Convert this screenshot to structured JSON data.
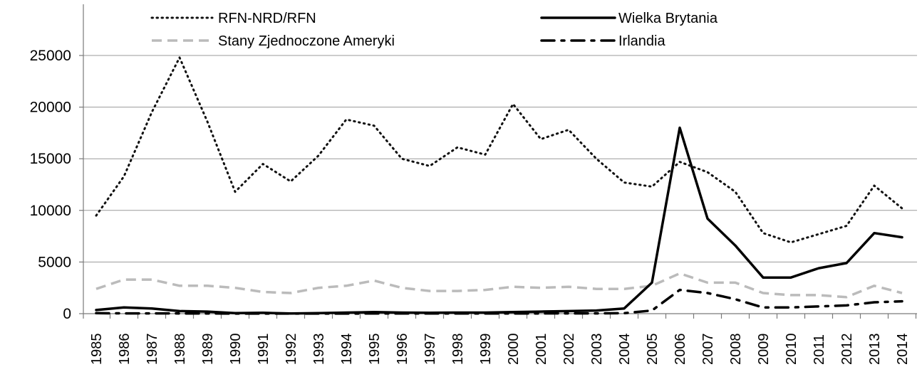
{
  "chart_data": {
    "type": "line",
    "title": "",
    "xlabel": "",
    "ylabel": "",
    "x": [
      "1985",
      "1986",
      "1987",
      "1988",
      "1989",
      "1990",
      "1991",
      "1992",
      "1993",
      "1994",
      "1995",
      "1996",
      "1997",
      "1998",
      "1999",
      "2000",
      "2001",
      "2002",
      "2003",
      "2004",
      "2005",
      "2006",
      "2007",
      "2008",
      "2009",
      "2010",
      "2011",
      "2012",
      "2013",
      "2014"
    ],
    "ylim": [
      0,
      25000
    ],
    "yticks": [
      "0",
      "5000",
      "10000",
      "15000",
      "20000",
      "25000"
    ],
    "ytick_values": [
      0,
      5000,
      10000,
      15000,
      20000,
      25000
    ],
    "grid": true,
    "legend_position": "top",
    "series": [
      {
        "name": "RFN-NRD/RFN",
        "style": "dotted",
        "color": "#111111",
        "values": [
          9500,
          13300,
          19500,
          24800,
          18600,
          11800,
          14500,
          12800,
          15300,
          18800,
          18200,
          15000,
          14300,
          16100,
          15400,
          20300,
          16900,
          17800,
          15000,
          12700,
          12300,
          14700,
          13700,
          11800,
          7800,
          6900,
          7700,
          8500,
          12400,
          10200
        ]
      },
      {
        "name": "Wielka Brytania",
        "style": "solid",
        "color": "#000000",
        "values": [
          350,
          600,
          500,
          250,
          200,
          50,
          80,
          20,
          50,
          100,
          150,
          100,
          80,
          100,
          100,
          150,
          200,
          250,
          300,
          500,
          3000,
          18000,
          9200,
          6600,
          3500,
          3500,
          4400,
          4900,
          7800,
          7400
        ]
      },
      {
        "name": "Stany Zjednoczone Ameryki",
        "style": "dashed",
        "color": "#bbbbbb",
        "values": [
          2400,
          3300,
          3300,
          2700,
          2700,
          2500,
          2100,
          2000,
          2500,
          2700,
          3200,
          2500,
          2200,
          2200,
          2300,
          2600,
          2500,
          2600,
          2400,
          2400,
          2700,
          3900,
          3000,
          3000,
          2000,
          1800,
          1800,
          1600,
          2700,
          2000
        ]
      },
      {
        "name": "Irlandia",
        "style": "dashdot",
        "color": "#000000",
        "values": [
          50,
          30,
          30,
          20,
          20,
          10,
          10,
          10,
          10,
          10,
          20,
          20,
          20,
          20,
          20,
          20,
          20,
          30,
          30,
          50,
          300,
          2300,
          2000,
          1400,
          600,
          600,
          700,
          800,
          1100,
          1200
        ]
      }
    ]
  }
}
